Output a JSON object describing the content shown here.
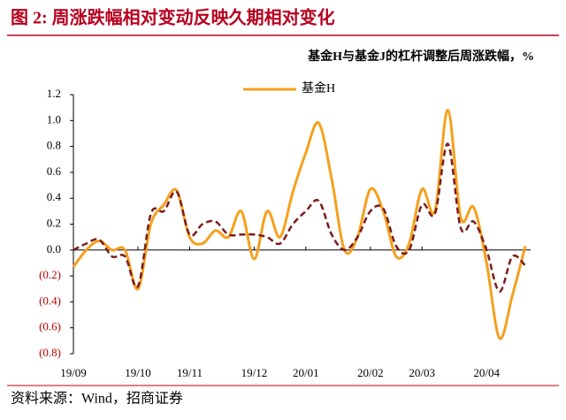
{
  "header": {
    "title": "图 2:  周涨跌幅相对变动反映久期相对变化"
  },
  "chart_data": {
    "type": "line",
    "title": "基金H与基金J的杠杆调整后周涨跌幅，%",
    "categories": [
      "19/09",
      null,
      null,
      null,
      null,
      "19/10",
      null,
      null,
      null,
      "19/11",
      null,
      null,
      null,
      null,
      "19/12",
      null,
      null,
      null,
      "20/01",
      null,
      null,
      null,
      null,
      "20/02",
      null,
      null,
      null,
      "20/03",
      null,
      null,
      null,
      null,
      "20/04",
      null,
      null,
      null
    ],
    "series": [
      {
        "name": "基金H",
        "color": "#f5a01e",
        "values": [
          -0.13,
          0.0,
          0.07,
          0.0,
          0.0,
          -0.3,
          0.2,
          0.35,
          0.46,
          0.1,
          0.05,
          0.15,
          0.1,
          0.3,
          -0.07,
          0.3,
          0.1,
          0.45,
          0.75,
          0.98,
          0.55,
          0.0,
          0.1,
          0.47,
          0.3,
          -0.05,
          0.05,
          0.47,
          0.3,
          1.08,
          0.25,
          0.33,
          -0.1,
          -0.68,
          -0.35,
          0.03
        ]
      },
      {
        "color": "#7b1c1c",
        "dashed": true,
        "values": [
          0.0,
          0.05,
          0.08,
          -0.05,
          -0.05,
          -0.28,
          0.28,
          0.3,
          0.45,
          0.12,
          0.2,
          0.22,
          0.12,
          0.12,
          0.12,
          0.1,
          0.05,
          0.2,
          0.3,
          0.38,
          0.12,
          0.0,
          0.1,
          0.3,
          0.32,
          0.03,
          0.0,
          0.35,
          0.28,
          0.82,
          0.17,
          0.22,
          0.0,
          -0.32,
          -0.05,
          -0.12
        ]
      }
    ],
    "ylim": [
      -0.8,
      1.2
    ],
    "yticks": [
      {
        "value": -0.8,
        "label": "(0.8)"
      },
      {
        "value": -0.6,
        "label": "(0.6)"
      },
      {
        "value": -0.4,
        "label": "(0.4)"
      },
      {
        "value": -0.2,
        "label": "(0.2)"
      },
      {
        "value": 0,
        "label": "0.0"
      },
      0.2,
      0.4,
      0.6,
      0.8,
      {
        "value": 1,
        "label": "1.0"
      },
      1.2
    ],
    "legend": "top",
    "negative_tick_color": "#c00000"
  },
  "footer": {
    "source": "资料来源：Wind，招商证券"
  }
}
